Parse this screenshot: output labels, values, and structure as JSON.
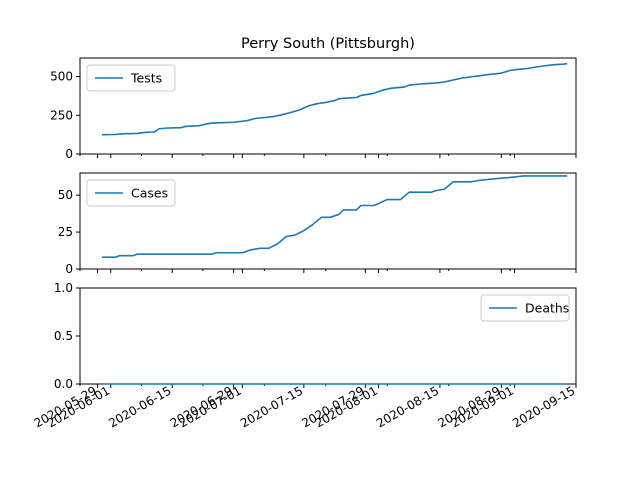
{
  "chart_data": {
    "type": "line",
    "title": "Perry South (Pittsburgh)",
    "x_axis": {
      "type": "date",
      "range": [
        "2020-05-25",
        "2020-09-15"
      ],
      "tick_labels": [
        "2020-05-29",
        "2020-06-01",
        "2020-06-15",
        "2020-06-29",
        "2020-07-01",
        "2020-07-15",
        "2020-07-29",
        "2020-08-01",
        "2020-08-15",
        "2020-08-29",
        "2020-09-01",
        "2020-09-15"
      ],
      "tick_dates": [
        "2020-05-29",
        "2020-06-01",
        "2020-06-15",
        "2020-06-29",
        "2020-07-01",
        "2020-07-15",
        "2020-07-29",
        "2020-08-01",
        "2020-08-15",
        "2020-08-29",
        "2020-09-01",
        "2020-09-15"
      ],
      "minor_tick_dates": [
        "2020-05-25",
        "2020-06-08",
        "2020-06-22",
        "2020-07-06",
        "2020-07-20",
        "2020-08-03",
        "2020-08-17",
        "2020-08-31"
      ]
    },
    "panels": [
      {
        "ylim": [
          0,
          620
        ],
        "yticks": [
          0,
          250,
          500
        ],
        "yticklabels": [
          "0",
          "250",
          "500"
        ],
        "legend_position": "upper-left",
        "series": [
          {
            "name": "Tests",
            "color": "#1f77b4",
            "points": [
              [
                "2020-05-30",
                125
              ],
              [
                "2020-06-02",
                126
              ],
              [
                "2020-06-04",
                131
              ],
              [
                "2020-06-07",
                133
              ],
              [
                "2020-06-09",
                140
              ],
              [
                "2020-06-11",
                142
              ],
              [
                "2020-06-12",
                163
              ],
              [
                "2020-06-14",
                168
              ],
              [
                "2020-06-17",
                170
              ],
              [
                "2020-06-18",
                178
              ],
              [
                "2020-06-21",
                182
              ],
              [
                "2020-06-23",
                195
              ],
              [
                "2020-06-24",
                200
              ],
              [
                "2020-06-27",
                203
              ],
              [
                "2020-06-29",
                205
              ],
              [
                "2020-07-02",
                215
              ],
              [
                "2020-07-04",
                230
              ],
              [
                "2020-07-06",
                235
              ],
              [
                "2020-07-08",
                242
              ],
              [
                "2020-07-10",
                253
              ],
              [
                "2020-07-12",
                268
              ],
              [
                "2020-07-14",
                285
              ],
              [
                "2020-07-16",
                310
              ],
              [
                "2020-07-18",
                325
              ],
              [
                "2020-07-20",
                333
              ],
              [
                "2020-07-22",
                345
              ],
              [
                "2020-07-23",
                357
              ],
              [
                "2020-07-27",
                365
              ],
              [
                "2020-07-28",
                378
              ],
              [
                "2020-07-31",
                392
              ],
              [
                "2020-08-02",
                413
              ],
              [
                "2020-08-04",
                425
              ],
              [
                "2020-08-07",
                433
              ],
              [
                "2020-08-08",
                445
              ],
              [
                "2020-08-11",
                453
              ],
              [
                "2020-08-14",
                458
              ],
              [
                "2020-08-16",
                465
              ],
              [
                "2020-08-18",
                478
              ],
              [
                "2020-08-20",
                490
              ],
              [
                "2020-08-22",
                498
              ],
              [
                "2020-08-24",
                505
              ],
              [
                "2020-08-26",
                513
              ],
              [
                "2020-08-29",
                522
              ],
              [
                "2020-08-31",
                540
              ],
              [
                "2020-09-02",
                547
              ],
              [
                "2020-09-04",
                553
              ],
              [
                "2020-09-06",
                562
              ],
              [
                "2020-09-08",
                570
              ],
              [
                "2020-09-10",
                577
              ],
              [
                "2020-09-12",
                580
              ],
              [
                "2020-09-13",
                583
              ]
            ]
          }
        ]
      },
      {
        "ylim": [
          0,
          65
        ],
        "yticks": [
          0,
          25,
          50
        ],
        "yticklabels": [
          "0",
          "25",
          "50"
        ],
        "legend_position": "upper-left",
        "series": [
          {
            "name": "Cases",
            "color": "#1f77b4",
            "points": [
              [
                "2020-05-30",
                8
              ],
              [
                "2020-06-02",
                8
              ],
              [
                "2020-06-03",
                9
              ],
              [
                "2020-06-06",
                9
              ],
              [
                "2020-06-07",
                10
              ],
              [
                "2020-06-24",
                10
              ],
              [
                "2020-06-25",
                11
              ],
              [
                "2020-07-01",
                11
              ],
              [
                "2020-07-03",
                13
              ],
              [
                "2020-07-05",
                14
              ],
              [
                "2020-07-07",
                14
              ],
              [
                "2020-07-09",
                17
              ],
              [
                "2020-07-11",
                22
              ],
              [
                "2020-07-13",
                23
              ],
              [
                "2020-07-15",
                26
              ],
              [
                "2020-07-17",
                30
              ],
              [
                "2020-07-19",
                35
              ],
              [
                "2020-07-21",
                35
              ],
              [
                "2020-07-23",
                37
              ],
              [
                "2020-07-24",
                40
              ],
              [
                "2020-07-27",
                40
              ],
              [
                "2020-07-28",
                43
              ],
              [
                "2020-07-31",
                43
              ],
              [
                "2020-08-03",
                47
              ],
              [
                "2020-08-06",
                47
              ],
              [
                "2020-08-08",
                52
              ],
              [
                "2020-08-09",
                52
              ],
              [
                "2020-08-13",
                52
              ],
              [
                "2020-08-14",
                53
              ],
              [
                "2020-08-16",
                54
              ],
              [
                "2020-08-18",
                59
              ],
              [
                "2020-08-22",
                59
              ],
              [
                "2020-08-24",
                60
              ],
              [
                "2020-08-27",
                61
              ],
              [
                "2020-08-31",
                62
              ],
              [
                "2020-09-03",
                63
              ],
              [
                "2020-09-13",
                63
              ]
            ]
          }
        ]
      },
      {
        "ylim": [
          0,
          1
        ],
        "yticks": [
          0,
          0.5,
          1
        ],
        "yticklabels": [
          "0.0",
          "0.5",
          "1.0"
        ],
        "legend_position": "upper-right",
        "series": [
          {
            "name": "Deaths",
            "color": "#1f77b4",
            "points": [
              [
                "2020-05-30",
                0
              ],
              [
                "2020-09-13",
                0
              ]
            ]
          }
        ]
      }
    ]
  }
}
